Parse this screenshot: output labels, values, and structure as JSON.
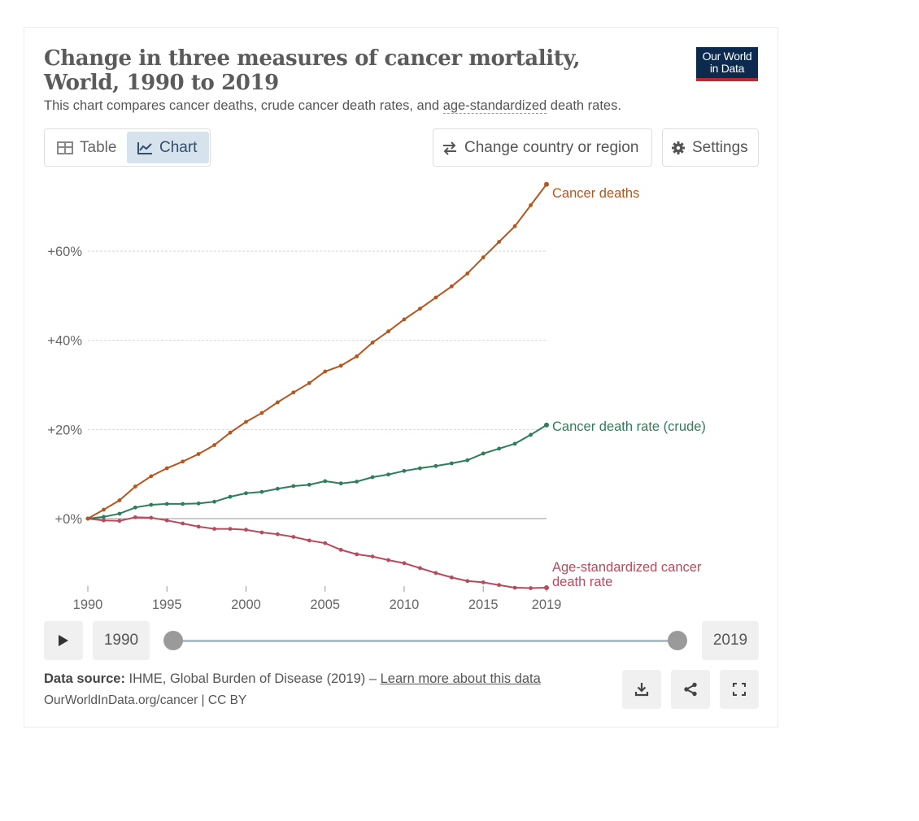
{
  "header": {
    "title": "Change in three measures of cancer mortality, World, 1990 to 2019",
    "subtitle_before": "This chart compares cancer deaths, crude cancer death rates, and ",
    "subtitle_link": "age-standardized",
    "subtitle_after": " death rates.",
    "logo_line1": "Our World",
    "logo_line2": "in Data"
  },
  "controls": {
    "tab_table": "Table",
    "tab_chart": "Chart",
    "change_region": "Change country or region",
    "settings": "Settings"
  },
  "timeline": {
    "start_year": "1990",
    "end_year": "2019"
  },
  "footer": {
    "source_label": "Data source:",
    "source_text": " IHME, Global Burden of Disease (2019) – ",
    "learn_more": "Learn more about this data",
    "license": "OurWorldInData.org/cancer | CC BY"
  },
  "colors": {
    "deaths": "#b5561f",
    "crude": "#2e7d5b",
    "agestd": "#b84a5d",
    "grid": "#d6d6d6",
    "axis": "#666666"
  },
  "chart_data": {
    "type": "line",
    "title": "Change in three measures of cancer mortality, World, 1990 to 2019",
    "xlabel": "",
    "ylabel": "",
    "x": [
      1990,
      1991,
      1992,
      1993,
      1994,
      1995,
      1996,
      1997,
      1998,
      1999,
      2000,
      2001,
      2002,
      2003,
      2004,
      2005,
      2006,
      2007,
      2008,
      2009,
      2010,
      2011,
      2012,
      2013,
      2014,
      2015,
      2016,
      2017,
      2018,
      2019
    ],
    "xlim": [
      1990,
      2019
    ],
    "ylim": [
      -16.7,
      75
    ],
    "y_ticks": [
      0,
      20,
      40,
      60
    ],
    "y_tick_labels": [
      "+0%",
      "+20%",
      "+40%",
      "+60%"
    ],
    "x_ticks": [
      1990,
      1995,
      2000,
      2005,
      2010,
      2015,
      2019
    ],
    "x_tick_labels": [
      "1990",
      "1995",
      "2000",
      "2005",
      "2010",
      "2015",
      "2019"
    ],
    "series": [
      {
        "name": "Cancer deaths",
        "label_lines": [
          "Cancer deaths"
        ],
        "color_key": "deaths",
        "values": [
          0,
          2.0,
          4.1,
          7.2,
          9.5,
          11.3,
          12.8,
          14.5,
          16.5,
          19.3,
          21.7,
          23.7,
          26.1,
          28.3,
          30.4,
          33.0,
          34.3,
          36.4,
          39.5,
          42.0,
          44.7,
          47.1,
          49.6,
          52.1,
          55.0,
          58.6,
          62.1,
          65.6,
          70.3,
          75.0
        ]
      },
      {
        "name": "Cancer death rate (crude)",
        "label_lines": [
          "Cancer death rate (crude)"
        ],
        "color_key": "crude",
        "values": [
          0,
          0.4,
          1.1,
          2.5,
          3.1,
          3.3,
          3.3,
          3.4,
          3.8,
          4.9,
          5.7,
          6.0,
          6.7,
          7.3,
          7.6,
          8.4,
          7.9,
          8.3,
          9.3,
          9.9,
          10.7,
          11.3,
          11.8,
          12.4,
          13.1,
          14.6,
          15.7,
          16.8,
          18.8,
          21.0
        ]
      },
      {
        "name": "Age-standardized cancer death rate",
        "label_lines": [
          "Age-standardized cancer",
          "death rate"
        ],
        "color_key": "agestd",
        "values": [
          0,
          -0.4,
          -0.5,
          0.3,
          0.2,
          -0.4,
          -1.1,
          -1.8,
          -2.3,
          -2.3,
          -2.5,
          -3.1,
          -3.5,
          -4.1,
          -4.9,
          -5.5,
          -7.0,
          -8.0,
          -8.5,
          -9.3,
          -10.0,
          -11.1,
          -12.2,
          -13.2,
          -14.0,
          -14.3,
          -14.9,
          -15.5,
          -15.6,
          -15.5
        ]
      }
    ]
  }
}
